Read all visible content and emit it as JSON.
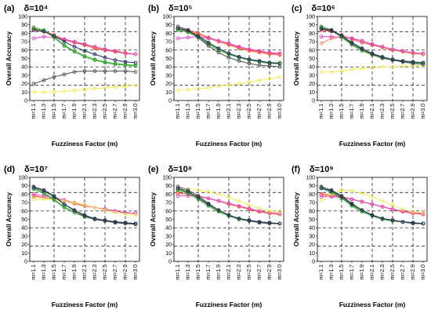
{
  "figure": {
    "x_tick_labels": [
      "m=1.1",
      "m=1.3",
      "m=1.5",
      "m=1.7",
      "m=1.9",
      "m=2.1",
      "m=2.3",
      "m=2.5",
      "m=2.7",
      "m=2.9",
      "m=3.0"
    ],
    "y_tick_labels": [
      "0",
      "10",
      "20",
      "30",
      "40",
      "50",
      "60",
      "70",
      "80",
      "90",
      "100"
    ]
  },
  "chart_data": [
    {
      "type": "line",
      "panel": "(a)",
      "title": "δ=10⁴",
      "xlabel": "Fuzziness Factor (m)",
      "ylabel": "Overall Accuracy",
      "categories": [
        "m=1.1",
        "m=1.3",
        "m=1.5",
        "m=1.7",
        "m=1.9",
        "m=2.1",
        "m=2.3",
        "m=2.5",
        "m=2.7",
        "m=2.9",
        "m=3.0"
      ],
      "ylim": [
        0,
        100
      ],
      "dashed_hlines": [
        18,
        40,
        60,
        82
      ],
      "dashed_vlines": [
        "m=1.5",
        "m=2.1",
        "m=2.5",
        "m=2.9"
      ],
      "series": [
        {
          "color": "#ef3e36",
          "values": [
            84,
            82,
            77,
            72,
            69,
            66,
            62,
            60,
            58,
            56,
            55
          ]
        },
        {
          "color": "#ff7f50",
          "values": [
            85,
            83,
            78,
            73,
            70,
            67,
            63,
            61,
            59,
            57,
            55
          ]
        },
        {
          "color": "#e040c8",
          "values": [
            74,
            76,
            75,
            73,
            70,
            67,
            64,
            61,
            59,
            56,
            55
          ]
        },
        {
          "color": "#f1ea5a",
          "values": [
            10,
            10,
            10,
            11,
            12,
            13,
            14,
            15,
            16,
            17,
            18
          ]
        },
        {
          "color": "#55b84a",
          "values": [
            87,
            84,
            76,
            66,
            59,
            53,
            49,
            46,
            44,
            43,
            42
          ]
        },
        {
          "color": "#2ca02c",
          "values": [
            86,
            83,
            75,
            65,
            58,
            52,
            48,
            45,
            43,
            42,
            41
          ]
        },
        {
          "color": "#4b4b4b",
          "values": [
            20,
            24,
            28,
            31,
            34,
            35,
            35,
            35,
            35,
            35,
            34
          ]
        },
        {
          "color": "#1f2a5a",
          "values": [
            84,
            82,
            77,
            70,
            64,
            59,
            55,
            51,
            48,
            46,
            45
          ]
        }
      ]
    },
    {
      "type": "line",
      "panel": "(b)",
      "title": "δ=10⁵",
      "xlabel": "Fuzziness Factor (m)",
      "ylabel": "Overall Accuracy",
      "categories": [
        "m=1.1",
        "m=1.3",
        "m=1.5",
        "m=1.7",
        "m=1.9",
        "m=2.1",
        "m=2.3",
        "m=2.5",
        "m=2.7",
        "m=2.9",
        "m=3.0"
      ],
      "ylim": [
        0,
        100
      ],
      "dashed_hlines": [
        18,
        40,
        60,
        82
      ],
      "dashed_vlines": [
        "m=1.5",
        "m=2.1",
        "m=2.5",
        "m=2.9"
      ],
      "series": [
        {
          "color": "#ef3e36",
          "values": [
            86,
            84,
            80,
            75,
            71,
            67,
            63,
            60,
            58,
            56,
            55
          ]
        },
        {
          "color": "#ff7f50",
          "values": [
            85,
            83,
            79,
            74,
            70,
            66,
            62,
            59,
            57,
            55,
            54
          ]
        },
        {
          "color": "#e040c8",
          "values": [
            74,
            75,
            76,
            74,
            71,
            68,
            64,
            61,
            59,
            57,
            56
          ]
        },
        {
          "color": "#f1ea5a",
          "values": [
            12,
            13,
            14,
            15,
            17,
            18,
            20,
            22,
            24,
            26,
            28
          ]
        },
        {
          "color": "#55b84a",
          "values": [
            85,
            82,
            76,
            68,
            61,
            56,
            52,
            49,
            47,
            45,
            45
          ]
        },
        {
          "color": "#2ca02c",
          "values": [
            84,
            81,
            75,
            67,
            60,
            55,
            51,
            48,
            46,
            44,
            44
          ]
        },
        {
          "color": "#4b4b4b",
          "values": [
            88,
            84,
            75,
            65,
            57,
            51,
            47,
            44,
            42,
            41,
            40
          ]
        },
        {
          "color": "#1f2a5a",
          "values": [
            86,
            83,
            77,
            69,
            62,
            56,
            52,
            49,
            47,
            45,
            44
          ]
        }
      ]
    },
    {
      "type": "line",
      "panel": "(c)",
      "title": "δ=10⁶",
      "xlabel": "Fuzziness Factor (m)",
      "ylabel": "Overall Accuracy",
      "categories": [
        "m=1.1",
        "m=1.3",
        "m=1.5",
        "m=1.7",
        "m=1.9",
        "m=2.1",
        "m=2.3",
        "m=2.5",
        "m=2.7",
        "m=2.9",
        "m=3.0"
      ],
      "ylim": [
        0,
        100
      ],
      "dashed_hlines": [
        18,
        40,
        60,
        82
      ],
      "dashed_vlines": [
        "m=1.5",
        "m=2.1",
        "m=2.5",
        "m=2.9"
      ],
      "series": [
        {
          "color": "#ef3e36",
          "values": [
            84,
            82,
            78,
            73,
            69,
            66,
            63,
            60,
            58,
            56,
            55
          ]
        },
        {
          "color": "#ff7f50",
          "values": [
            68,
            74,
            76,
            74,
            71,
            67,
            63,
            60,
            58,
            56,
            55
          ]
        },
        {
          "color": "#e040c8",
          "values": [
            76,
            76,
            75,
            74,
            71,
            67,
            64,
            61,
            59,
            57,
            56
          ]
        },
        {
          "color": "#f1ea5a",
          "values": [
            34,
            34,
            35,
            37,
            38,
            39,
            40,
            40,
            41,
            41,
            42
          ]
        },
        {
          "color": "#55b84a",
          "values": [
            87,
            83,
            75,
            66,
            59,
            54,
            50,
            48,
            46,
            45,
            44
          ]
        },
        {
          "color": "#2ca02c",
          "values": [
            88,
            84,
            76,
            67,
            60,
            55,
            51,
            48,
            47,
            45,
            45
          ]
        },
        {
          "color": "#4b4b4b",
          "values": [
            86,
            84,
            77,
            68,
            61,
            55,
            51,
            48,
            46,
            44,
            43
          ]
        },
        {
          "color": "#1f2a5a",
          "values": [
            85,
            83,
            77,
            69,
            62,
            56,
            52,
            49,
            47,
            46,
            45
          ]
        }
      ]
    },
    {
      "type": "line",
      "panel": "(d)",
      "title": "δ=10⁷",
      "xlabel": "Fuzziness Factor (m)",
      "ylabel": "Overall Accuracy",
      "categories": [
        "m=1.1",
        "m=1.3",
        "m=1.5",
        "m=1.7",
        "m=1.9",
        "m=2.1",
        "m=2.3",
        "m=2.5",
        "m=2.7",
        "m=2.9",
        "m=3.0"
      ],
      "ylim": [
        0,
        100
      ],
      "dashed_hlines": [
        18,
        40,
        60,
        82
      ],
      "dashed_vlines": [
        "m=1.5",
        "m=2.1",
        "m=2.5",
        "m=2.9"
      ],
      "series": [
        {
          "color": "#ef3e36",
          "values": [
            78,
            76,
            74,
            72,
            69,
            66,
            64,
            62,
            60,
            58,
            57
          ]
        },
        {
          "color": "#ff7f50",
          "values": [
            77,
            76,
            74,
            72,
            70,
            67,
            64,
            62,
            60,
            58,
            57
          ]
        },
        {
          "color": "#e040c8",
          "values": [
            80,
            78,
            76,
            73,
            70,
            67,
            64,
            62,
            60,
            58,
            57
          ]
        },
        {
          "color": "#f1ea5a",
          "values": [
            74,
            74,
            74,
            72,
            70,
            67,
            64,
            61,
            58,
            56,
            55
          ]
        },
        {
          "color": "#55b84a",
          "values": [
            87,
            82,
            74,
            65,
            58,
            53,
            50,
            48,
            47,
            46,
            45
          ]
        },
        {
          "color": "#2ca02c",
          "values": [
            86,
            81,
            73,
            64,
            58,
            53,
            50,
            48,
            47,
            46,
            45
          ]
        },
        {
          "color": "#4b4b4b",
          "values": [
            89,
            85,
            78,
            68,
            60,
            54,
            50,
            48,
            46,
            45,
            44
          ]
        },
        {
          "color": "#1f2a5a",
          "values": [
            88,
            84,
            77,
            68,
            61,
            55,
            51,
            49,
            47,
            46,
            45
          ]
        }
      ]
    },
    {
      "type": "line",
      "panel": "(e)",
      "title": "δ=10⁸",
      "xlabel": "Fuzziness Factor (m)",
      "ylabel": "Overall Accuracy",
      "categories": [
        "m=1.1",
        "m=1.3",
        "m=1.5",
        "m=1.7",
        "m=1.9",
        "m=2.1",
        "m=2.3",
        "m=2.5",
        "m=2.7",
        "m=2.9",
        "m=3.0"
      ],
      "ylim": [
        0,
        100
      ],
      "dashed_hlines": [
        18,
        40,
        60,
        82
      ],
      "dashed_vlines": [
        "m=1.5",
        "m=2.1",
        "m=2.5",
        "m=2.9"
      ],
      "series": [
        {
          "color": "#ef3e36",
          "values": [
            82,
            80,
            78,
            75,
            72,
            68,
            65,
            62,
            59,
            57,
            56
          ]
        },
        {
          "color": "#ff7f50",
          "values": [
            81,
            80,
            78,
            75,
            72,
            68,
            65,
            62,
            59,
            57,
            56
          ]
        },
        {
          "color": "#e040c8",
          "values": [
            78,
            78,
            77,
            75,
            72,
            69,
            66,
            63,
            60,
            58,
            57
          ]
        },
        {
          "color": "#f1ea5a",
          "values": [
            86,
            86,
            85,
            83,
            80,
            76,
            72,
            67,
            63,
            60,
            59
          ]
        },
        {
          "color": "#55b84a",
          "values": [
            86,
            82,
            75,
            67,
            60,
            55,
            51,
            48,
            47,
            46,
            45
          ]
        },
        {
          "color": "#2ca02c",
          "values": [
            85,
            81,
            74,
            66,
            59,
            54,
            50,
            48,
            47,
            46,
            45
          ]
        },
        {
          "color": "#4b4b4b",
          "values": [
            89,
            85,
            78,
            69,
            61,
            55,
            51,
            48,
            46,
            45,
            45
          ]
        },
        {
          "color": "#1f2a5a",
          "values": [
            87,
            83,
            76,
            68,
            61,
            55,
            51,
            49,
            47,
            46,
            45
          ]
        }
      ]
    },
    {
      "type": "line",
      "panel": "(f)",
      "title": "δ=10⁹",
      "xlabel": "Fuzziness Factor (m)",
      "ylabel": "Overall Accuracy",
      "categories": [
        "m=1.1",
        "m=1.3",
        "m=1.5",
        "m=1.7",
        "m=1.9",
        "m=2.1",
        "m=2.3",
        "m=2.5",
        "m=2.7",
        "m=2.9",
        "m=3.0"
      ],
      "ylim": [
        0,
        100
      ],
      "dashed_hlines": [
        18,
        40,
        60,
        82
      ],
      "dashed_vlines": [
        "m=1.5",
        "m=2.1",
        "m=2.5",
        "m=2.9"
      ],
      "series": [
        {
          "color": "#ef3e36",
          "values": [
            80,
            79,
            77,
            74,
            71,
            68,
            65,
            62,
            59,
            57,
            56
          ]
        },
        {
          "color": "#ff7f50",
          "values": [
            79,
            78,
            76,
            74,
            71,
            68,
            65,
            62,
            59,
            57,
            56
          ]
        },
        {
          "color": "#e040c8",
          "values": [
            77,
            77,
            76,
            74,
            71,
            68,
            65,
            62,
            60,
            58,
            57
          ]
        },
        {
          "color": "#f1ea5a",
          "values": [
            72,
            80,
            85,
            84,
            81,
            77,
            72,
            67,
            62,
            59,
            58
          ]
        },
        {
          "color": "#55b84a",
          "values": [
            88,
            83,
            76,
            67,
            60,
            55,
            51,
            49,
            47,
            46,
            45
          ]
        },
        {
          "color": "#2ca02c",
          "values": [
            87,
            82,
            75,
            66,
            59,
            54,
            50,
            48,
            47,
            46,
            45
          ]
        },
        {
          "color": "#4b4b4b",
          "values": [
            89,
            85,
            78,
            69,
            61,
            55,
            51,
            49,
            47,
            45,
            45
          ]
        },
        {
          "color": "#1f2a5a",
          "values": [
            87,
            84,
            77,
            68,
            61,
            55,
            51,
            49,
            47,
            46,
            45
          ]
        }
      ]
    }
  ]
}
